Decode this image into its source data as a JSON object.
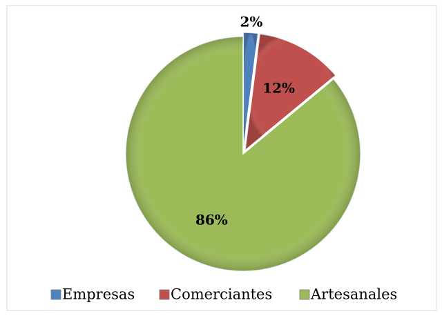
{
  "chart_data": {
    "type": "pie",
    "categories": [
      "Empresas",
      "Comerciantes",
      "Artesanales"
    ],
    "values": [
      2,
      12,
      86
    ],
    "value_labels": [
      "2%",
      "12%",
      "86%"
    ],
    "colors": [
      "#4f81bd",
      "#c0504d",
      "#9bbb59"
    ],
    "legend": "bottom"
  }
}
